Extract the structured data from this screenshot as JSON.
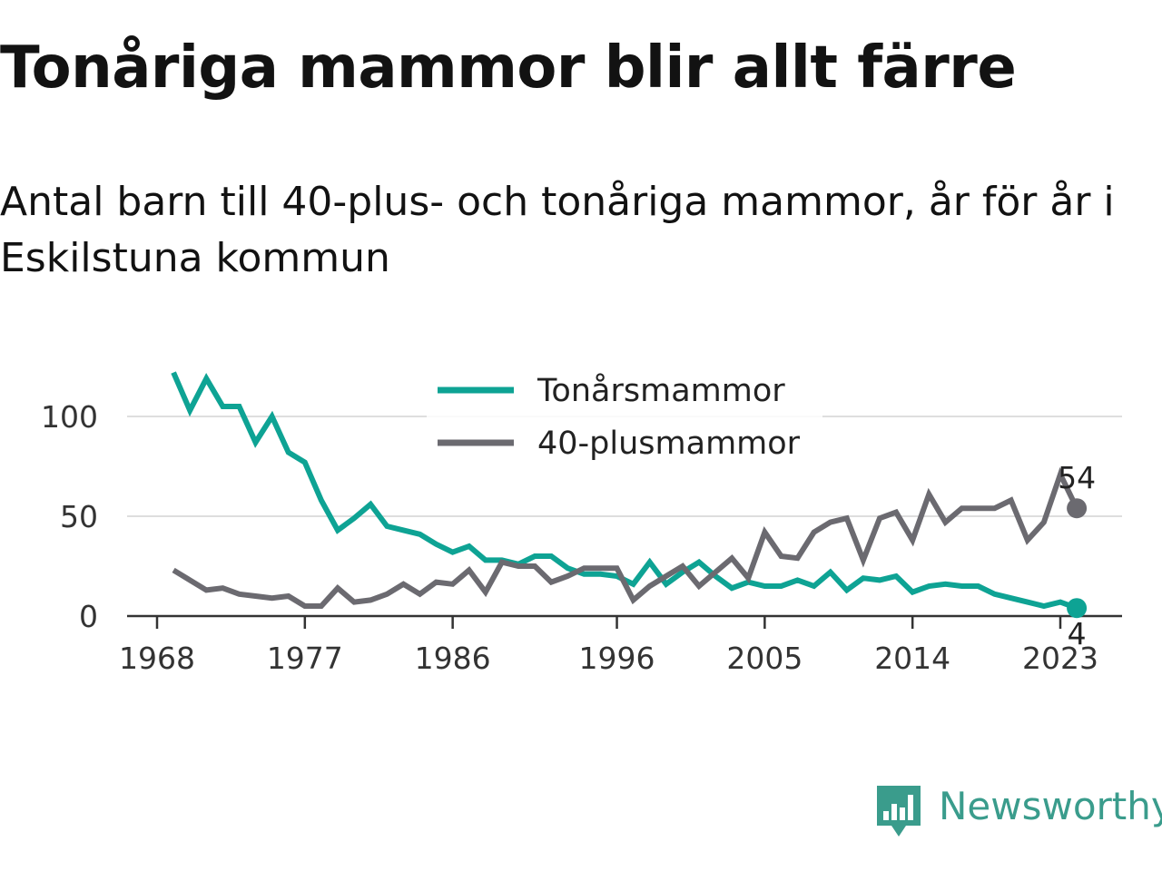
{
  "title": "Tonåriga mammor blir allt färre",
  "subtitle": "Antal barn till 40-plus- och tonåriga mammor, år för år i Eskilstuna kommun",
  "brand": {
    "name": "Newsworthy",
    "color": "#3a9c8c",
    "icon": "bar-chart-speech-bubble-icon"
  },
  "chart_data": {
    "type": "line",
    "x_ticks": [
      1968,
      1977,
      1986,
      1996,
      2005,
      2014,
      2023
    ],
    "y_ticks": [
      0,
      50,
      100
    ],
    "ylim": [
      0,
      125
    ],
    "xlim": [
      1968,
      2025
    ],
    "grid": true,
    "legend_position": "top",
    "series": [
      {
        "name": "Tonårsmammor",
        "color": "#0ea394",
        "end_label": "4",
        "points": [
          [
            1969,
            122
          ],
          [
            1970,
            103
          ],
          [
            1971,
            119
          ],
          [
            1972,
            105
          ],
          [
            1973,
            105
          ],
          [
            1974,
            87
          ],
          [
            1975,
            100
          ],
          [
            1976,
            82
          ],
          [
            1977,
            77
          ],
          [
            1978,
            58
          ],
          [
            1979,
            43
          ],
          [
            1980,
            49
          ],
          [
            1981,
            56
          ],
          [
            1982,
            45
          ],
          [
            1983,
            43
          ],
          [
            1984,
            41
          ],
          [
            1985,
            36
          ],
          [
            1986,
            32
          ],
          [
            1987,
            35
          ],
          [
            1988,
            28
          ],
          [
            1989,
            28
          ],
          [
            1990,
            26
          ],
          [
            1991,
            30
          ],
          [
            1992,
            30
          ],
          [
            1993,
            24
          ],
          [
            1994,
            21
          ],
          [
            1995,
            21
          ],
          [
            1996,
            20
          ],
          [
            1997,
            16
          ],
          [
            1998,
            27
          ],
          [
            1999,
            16
          ],
          [
            2000,
            22
          ],
          [
            2001,
            27
          ],
          [
            2002,
            20
          ],
          [
            2003,
            14
          ],
          [
            2004,
            17
          ],
          [
            2005,
            15
          ],
          [
            2006,
            15
          ],
          [
            2007,
            18
          ],
          [
            2008,
            15
          ],
          [
            2009,
            22
          ],
          [
            2010,
            13
          ],
          [
            2011,
            19
          ],
          [
            2012,
            18
          ],
          [
            2013,
            20
          ],
          [
            2014,
            12
          ],
          [
            2015,
            15
          ],
          [
            2016,
            16
          ],
          [
            2017,
            15
          ],
          [
            2018,
            15
          ],
          [
            2019,
            11
          ],
          [
            2020,
            9
          ],
          [
            2021,
            7
          ],
          [
            2022,
            5
          ],
          [
            2023,
            7
          ],
          [
            2024,
            4
          ]
        ]
      },
      {
        "name": "40-plusmammor",
        "color": "#6b6a70",
        "end_label": "54",
        "points": [
          [
            1969,
            23
          ],
          [
            1970,
            18
          ],
          [
            1971,
            13
          ],
          [
            1972,
            14
          ],
          [
            1973,
            11
          ],
          [
            1974,
            10
          ],
          [
            1975,
            9
          ],
          [
            1976,
            10
          ],
          [
            1977,
            5
          ],
          [
            1978,
            5
          ],
          [
            1979,
            14
          ],
          [
            1980,
            7
          ],
          [
            1981,
            8
          ],
          [
            1982,
            11
          ],
          [
            1983,
            16
          ],
          [
            1984,
            11
          ],
          [
            1985,
            17
          ],
          [
            1986,
            16
          ],
          [
            1987,
            23
          ],
          [
            1988,
            12
          ],
          [
            1989,
            27
          ],
          [
            1990,
            25
          ],
          [
            1991,
            25
          ],
          [
            1992,
            17
          ],
          [
            1993,
            20
          ],
          [
            1994,
            24
          ],
          [
            1995,
            24
          ],
          [
            1996,
            24
          ],
          [
            1997,
            8
          ],
          [
            1998,
            15
          ],
          [
            1999,
            20
          ],
          [
            2000,
            25
          ],
          [
            2001,
            15
          ],
          [
            2002,
            22
          ],
          [
            2003,
            29
          ],
          [
            2004,
            19
          ],
          [
            2005,
            42
          ],
          [
            2006,
            30
          ],
          [
            2007,
            29
          ],
          [
            2008,
            42
          ],
          [
            2009,
            47
          ],
          [
            2010,
            49
          ],
          [
            2011,
            28
          ],
          [
            2012,
            49
          ],
          [
            2013,
            52
          ],
          [
            2014,
            38
          ],
          [
            2015,
            61
          ],
          [
            2016,
            47
          ],
          [
            2017,
            54
          ],
          [
            2018,
            54
          ],
          [
            2019,
            54
          ],
          [
            2020,
            58
          ],
          [
            2021,
            38
          ],
          [
            2022,
            47
          ],
          [
            2023,
            71
          ],
          [
            2024,
            54
          ]
        ]
      }
    ]
  }
}
